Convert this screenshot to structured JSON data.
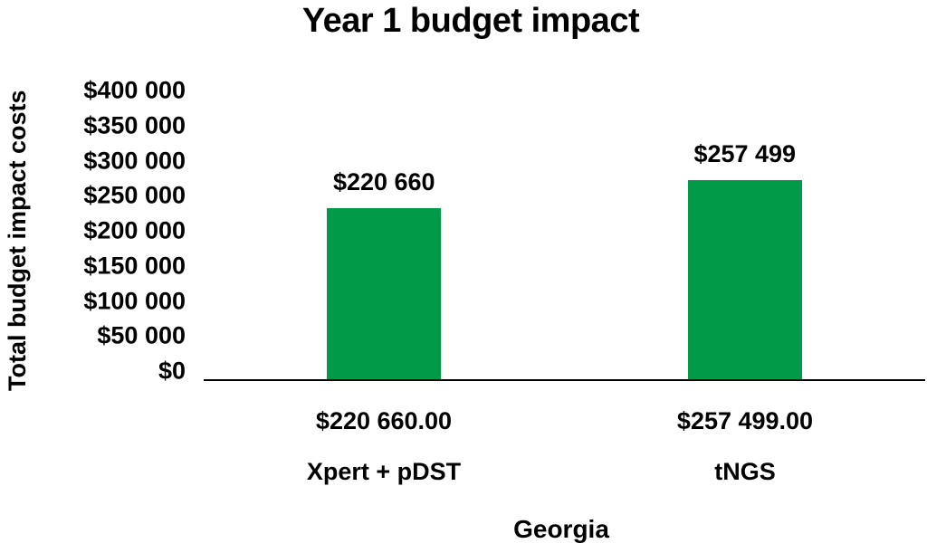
{
  "chart_data": {
    "type": "bar",
    "title": "Year 1 budget impact",
    "xlabel": "Georgia",
    "ylabel": "Total budget impact costs",
    "categories": [
      "Xpert + pDST",
      "tNGS"
    ],
    "values": [
      220660,
      257499
    ],
    "bar_labels": [
      "$220 660",
      "$257 499"
    ],
    "axis_value_labels": [
      "$220 660.00",
      "$257 499.00"
    ],
    "ytick_labels": [
      "$400 000",
      "$350 000",
      "$300 000",
      "$250 000",
      "$200 000",
      "$150 000",
      "$100 000",
      "$50 000",
      "$0"
    ],
    "ylim": [
      0,
      400000
    ],
    "bar_color": "#009A49",
    "axis_color": "#000000",
    "text_color": "#000000",
    "grid": false,
    "legend": false
  }
}
